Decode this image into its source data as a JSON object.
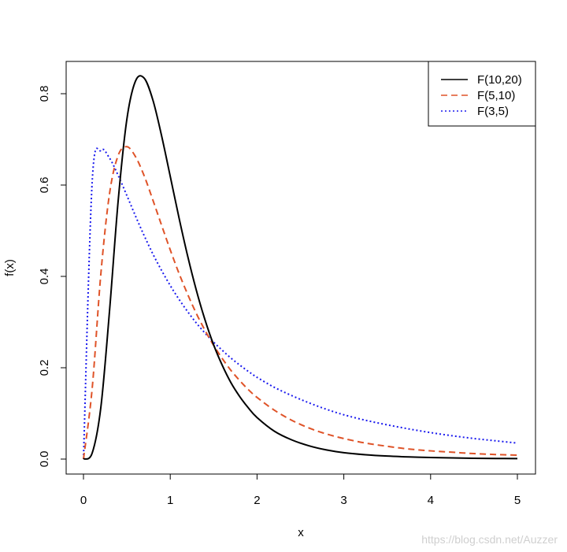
{
  "chart_data": {
    "type": "line",
    "title": "",
    "xlabel": "x",
    "ylabel": "f(x)",
    "xlim": [
      0,
      5
    ],
    "ylim": [
      0,
      0.85
    ],
    "x_ticks": [
      "0",
      "1",
      "2",
      "3",
      "4",
      "5"
    ],
    "y_ticks": [
      "0.0",
      "0.2",
      "0.4",
      "0.6",
      "0.8"
    ],
    "grid": false,
    "legend_position": "top-right",
    "x": [
      0,
      0.1,
      0.2,
      0.3,
      0.4,
      0.5,
      0.6,
      0.7,
      0.8,
      0.9,
      1.0,
      1.1,
      1.2,
      1.3,
      1.4,
      1.5,
      1.6,
      1.7,
      1.8,
      1.9,
      2.0,
      2.2,
      2.4,
      2.6,
      2.8,
      3.0,
      3.25,
      3.5,
      3.75,
      4.0,
      4.25,
      4.5,
      4.75,
      5.0
    ],
    "series": [
      {
        "name": "F(10,20)",
        "color": "#000000",
        "dash": "solid",
        "values": [
          0,
          0.013,
          0.113,
          0.324,
          0.566,
          0.744,
          0.828,
          0.834,
          0.786,
          0.708,
          0.619,
          0.529,
          0.445,
          0.37,
          0.305,
          0.25,
          0.205,
          0.167,
          0.137,
          0.112,
          0.091,
          0.061,
          0.042,
          0.029,
          0.02,
          0.014,
          0.0095,
          0.0066,
          0.0047,
          0.0034,
          0.0025,
          0.0018,
          0.0014,
          0.001
        ]
      },
      {
        "name": "F(5,10)",
        "color": "#df5328",
        "dash": "dashed",
        "values": [
          0,
          0.154,
          0.405,
          0.581,
          0.665,
          0.684,
          0.662,
          0.62,
          0.567,
          0.512,
          0.458,
          0.407,
          0.361,
          0.319,
          0.282,
          0.249,
          0.22,
          0.194,
          0.172,
          0.152,
          0.135,
          0.107,
          0.085,
          0.068,
          0.055,
          0.045,
          0.035,
          0.028,
          0.022,
          0.018,
          0.015,
          0.012,
          0.01,
          0.0085
        ]
      },
      {
        "name": "F(3,5)",
        "color": "#1a1aee",
        "dash": "dotted",
        "values": [
          0,
          0.606,
          0.676,
          0.659,
          0.621,
          0.577,
          0.532,
          0.489,
          0.449,
          0.413,
          0.38,
          0.35,
          0.323,
          0.298,
          0.276,
          0.256,
          0.238,
          0.221,
          0.206,
          0.192,
          0.179,
          0.157,
          0.139,
          0.123,
          0.109,
          0.097,
          0.085,
          0.075,
          0.066,
          0.058,
          0.051,
          0.045,
          0.04,
          0.035
        ]
      }
    ]
  },
  "watermark": "https://blog.csdn.net/Auzzer"
}
